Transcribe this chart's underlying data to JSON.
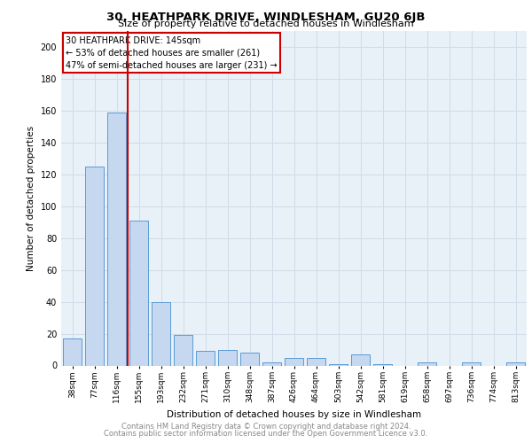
{
  "title1": "30, HEATHPARK DRIVE, WINDLESHAM, GU20 6JB",
  "title2": "Size of property relative to detached houses in Windlesham",
  "xlabel": "Distribution of detached houses by size in Windlesham",
  "ylabel": "Number of detached properties",
  "categories": [
    "38sqm",
    "77sqm",
    "116sqm",
    "155sqm",
    "193sqm",
    "232sqm",
    "271sqm",
    "310sqm",
    "348sqm",
    "387sqm",
    "426sqm",
    "464sqm",
    "503sqm",
    "542sqm",
    "581sqm",
    "619sqm",
    "658sqm",
    "697sqm",
    "736sqm",
    "774sqm",
    "813sqm"
  ],
  "values": [
    17,
    125,
    159,
    91,
    40,
    19,
    9,
    10,
    8,
    2,
    5,
    5,
    1,
    7,
    1,
    0,
    2,
    0,
    2,
    0,
    2
  ],
  "bar_color": "#c5d8f0",
  "bar_edge_color": "#5b9bd5",
  "vline_color": "#cc0000",
  "ylim": [
    0,
    210
  ],
  "yticks": [
    0,
    20,
    40,
    60,
    80,
    100,
    120,
    140,
    160,
    180,
    200
  ],
  "annotation_title": "30 HEATHPARK DRIVE: 145sqm",
  "annotation_line1": "← 53% of detached houses are smaller (261)",
  "annotation_line2": "47% of semi-detached houses are larger (231) →",
  "annotation_box_color": "#ffffff",
  "annotation_box_edge": "#cc0000",
  "footer1": "Contains HM Land Registry data © Crown copyright and database right 2024.",
  "footer2": "Contains public sector information licensed under the Open Government Licence v3.0.",
  "grid_color": "#d0dce8",
  "background_color": "#e8f0f8"
}
